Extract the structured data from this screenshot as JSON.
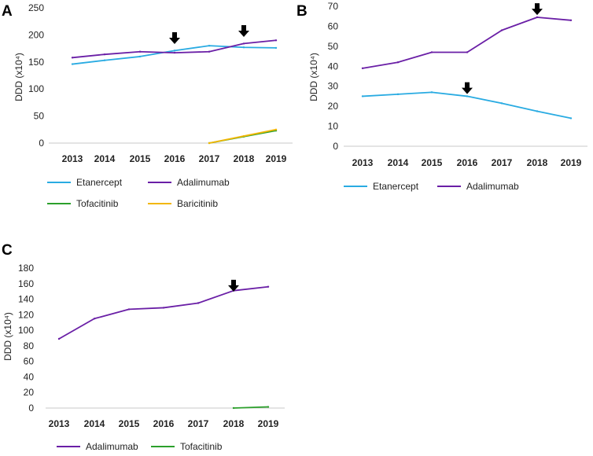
{
  "chart_data": [
    {
      "type": "line",
      "panel_label": "A",
      "title": "",
      "xlabel": "",
      "ylabel": "DDD (x10⁴)",
      "categories": [
        "2013",
        "2014",
        "2015",
        "2016",
        "2017",
        "2018",
        "2019"
      ],
      "ylim": [
        0,
        250
      ],
      "yticks": [
        "0",
        "50",
        "100",
        "150",
        "200",
        "250"
      ],
      "grid": false,
      "series": [
        {
          "name": "Etanercept",
          "color": "#29ABE2",
          "values": [
            146,
            153,
            160,
            171,
            180,
            177,
            176
          ]
        },
        {
          "name": "Adalimumab",
          "color": "#6A1FA6",
          "values": [
            158,
            164,
            169,
            167,
            169,
            184,
            190
          ]
        },
        {
          "name": "Tofacitinib",
          "color": "#2CA02C",
          "values": [
            null,
            null,
            null,
            null,
            0,
            12,
            23
          ]
        },
        {
          "name": "Baricitinib",
          "color": "#F2B705",
          "values": [
            null,
            null,
            null,
            null,
            0,
            13,
            25
          ]
        }
      ],
      "annotations": [
        {
          "type": "arrow-down",
          "x": "2016",
          "y": 205
        },
        {
          "type": "arrow-down",
          "x": "2018",
          "y": 218
        }
      ],
      "legend": "bottom"
    },
    {
      "type": "line",
      "panel_label": "B",
      "title": "",
      "xlabel": "",
      "ylabel": "DDD (x10⁴)",
      "categories": [
        "2013",
        "2014",
        "2015",
        "2016",
        "2017",
        "2018",
        "2019"
      ],
      "ylim": [
        0,
        70
      ],
      "yticks": [
        "0",
        "10",
        "20",
        "30",
        "40",
        "50",
        "60",
        "70"
      ],
      "grid": false,
      "series": [
        {
          "name": "Etanercept",
          "color": "#29ABE2",
          "values": [
            25,
            26,
            27,
            25,
            21.5,
            17.5,
            14
          ]
        },
        {
          "name": "Adalimumab",
          "color": "#6A1FA6",
          "values": [
            39,
            42,
            47,
            47,
            58,
            64.5,
            63
          ]
        }
      ],
      "annotations": [
        {
          "type": "arrow-down",
          "x": "2016",
          "y": 32
        },
        {
          "type": "arrow-down",
          "x": "2018",
          "y": 71.5
        }
      ],
      "legend": "bottom"
    },
    {
      "type": "line",
      "panel_label": "C",
      "title": "",
      "xlabel": "",
      "ylabel": "DDD (x10⁴)",
      "categories": [
        "2013",
        "2014",
        "2015",
        "2016",
        "2017",
        "2018",
        "2019"
      ],
      "ylim": [
        0,
        180
      ],
      "yticks": [
        "0",
        "20",
        "40",
        "60",
        "80",
        "100",
        "120",
        "140",
        "160",
        "180"
      ],
      "grid": false,
      "series": [
        {
          "name": "Adalimumab",
          "color": "#6A1FA6",
          "values": [
            89,
            115,
            127,
            129,
            135,
            151,
            156
          ]
        },
        {
          "name": "Tofacitinib",
          "color": "#2CA02C",
          "values": [
            null,
            null,
            null,
            null,
            null,
            0,
            1.5
          ]
        }
      ],
      "annotations": [
        {
          "type": "arrow-down",
          "x": "2018",
          "y": 165
        }
      ],
      "legend": "bottom"
    }
  ]
}
